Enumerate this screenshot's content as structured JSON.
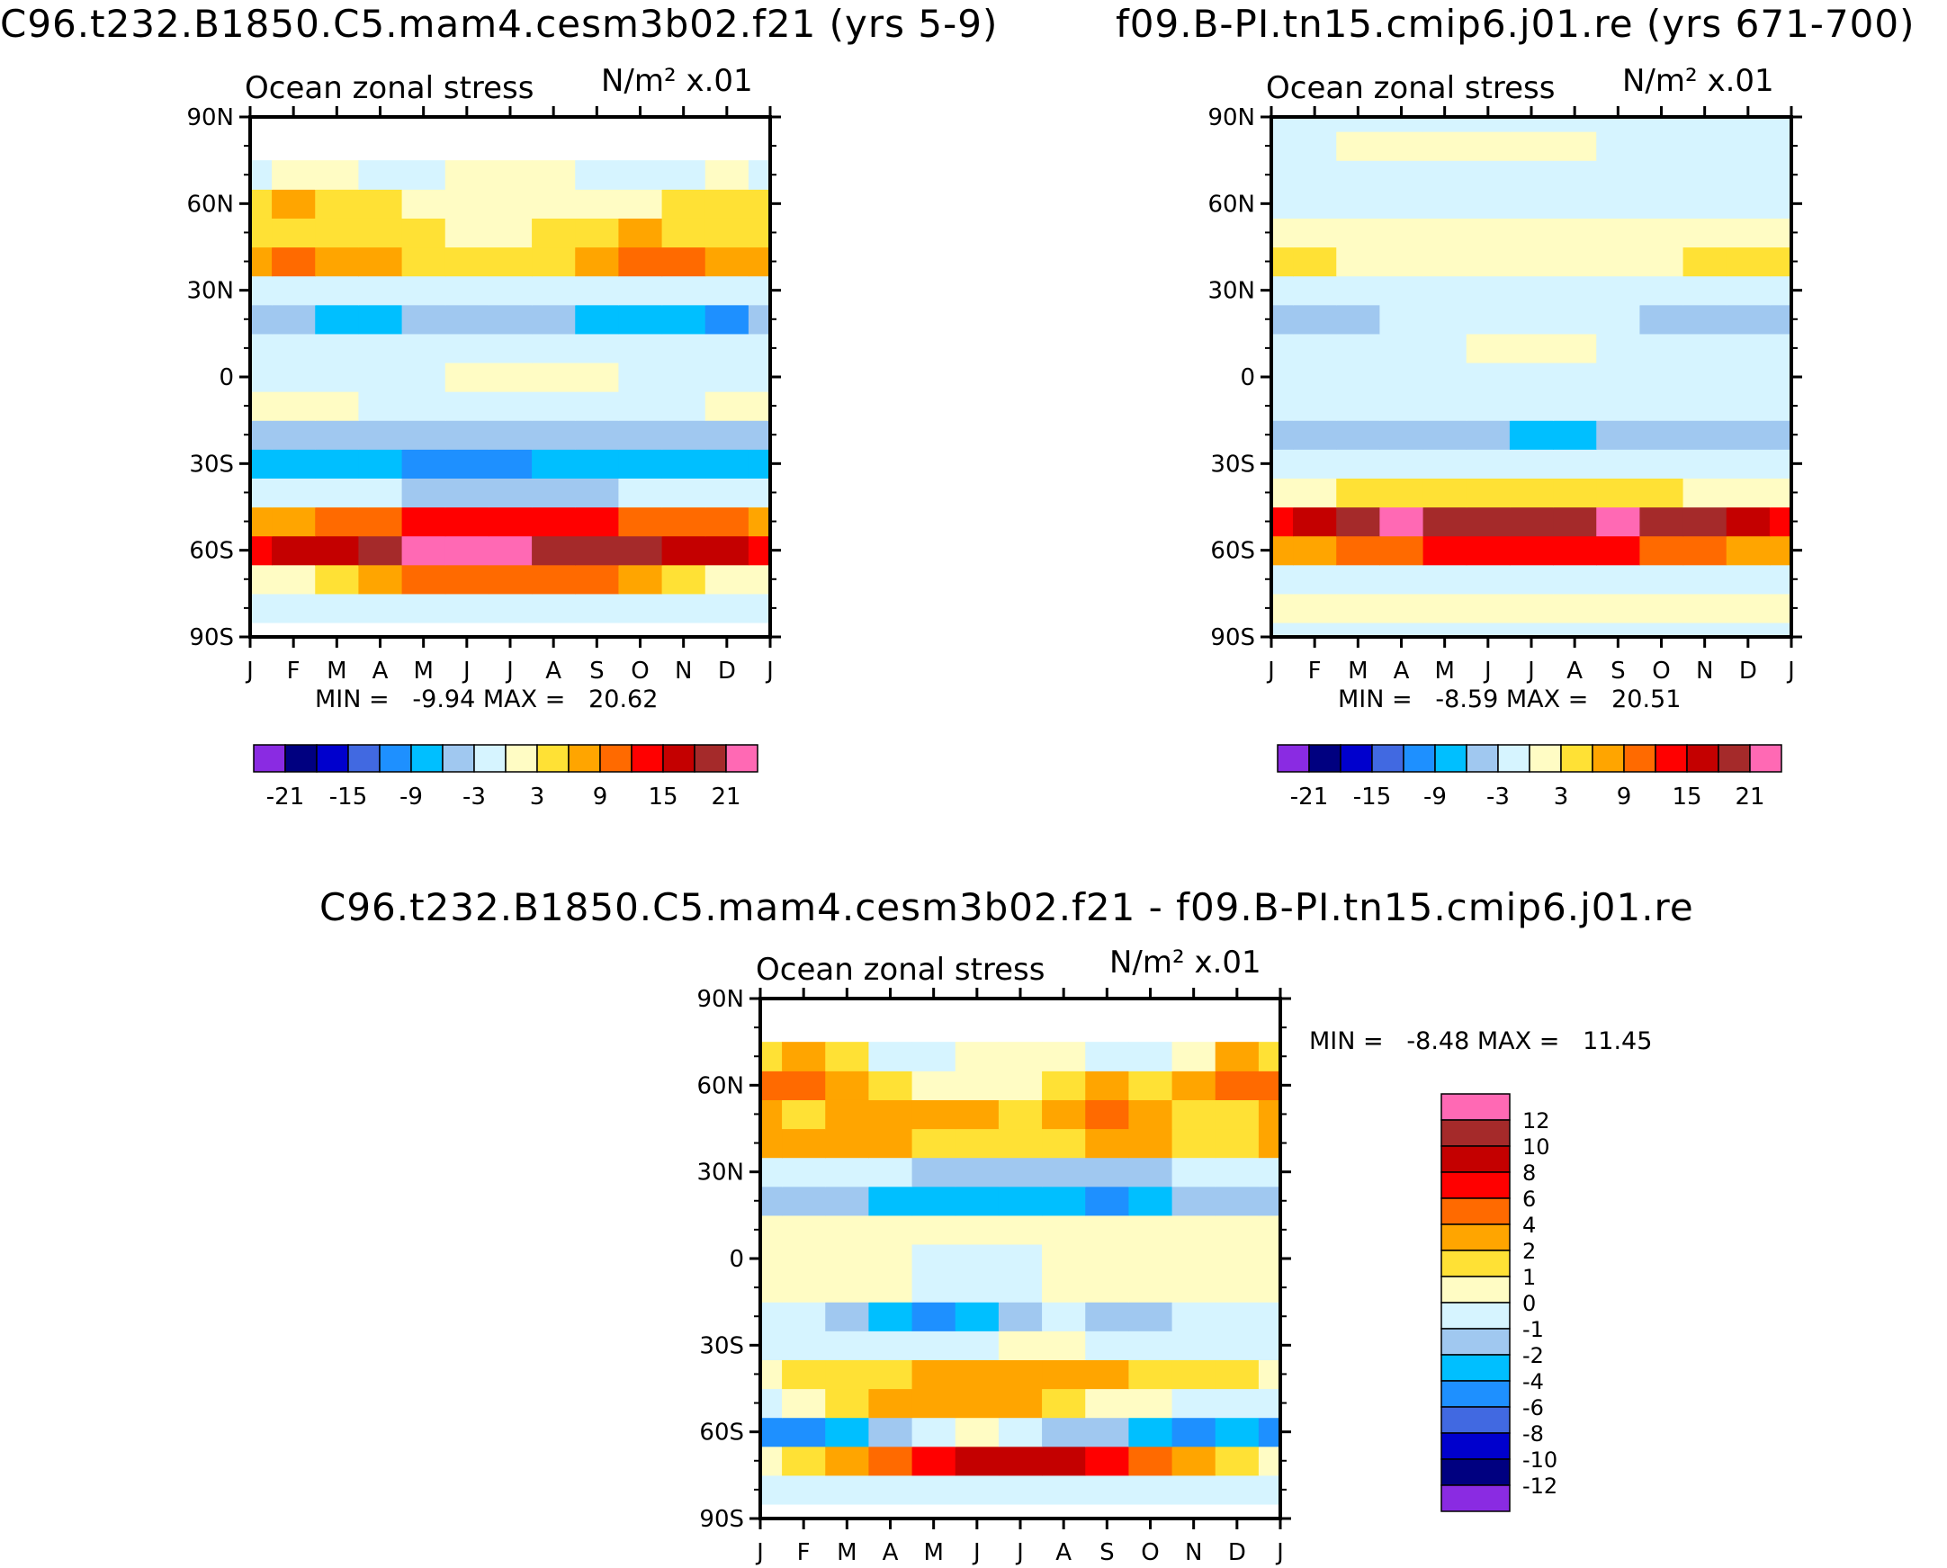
{
  "panels": [
    {
      "caption": "C96.t232.B1850.C5.mam4.cesm3b02.f21 (yrs 5-9)",
      "title": "Ocean zonal stress",
      "units": "N/m² x.01",
      "min_label": "MIN =",
      "min_value": "-9.94",
      "max_label": "MAX =",
      "max_value": "20.62"
    },
    {
      "caption": "f09.B-PI.tn15.cmip6.j01.re (yrs 671-700)",
      "title": "Ocean zonal stress",
      "units": "N/m² x.01",
      "min_label": "MIN =",
      "min_value": "-8.59",
      "max_label": "MAX =",
      "max_value": "20.51"
    },
    {
      "caption": "C96.t232.B1850.C5.mam4.cesm3b02.f21 - f09.B-PI.tn15.cmip6.j01.re",
      "title": "Ocean zonal stress",
      "units": "N/m² x.01",
      "min_label": "MIN =",
      "min_value": "-8.48",
      "max_label": "MAX =",
      "max_value": "11.45"
    }
  ],
  "chart_data": [
    {
      "type": "heatmap",
      "title": "Ocean zonal stress",
      "units": "N/m² x.01",
      "x_ticks": [
        "J",
        "F",
        "M",
        "A",
        "M",
        "J",
        "J",
        "A",
        "S",
        "O",
        "N",
        "D",
        "J"
      ],
      "y_ticks": [
        "90N",
        "60N",
        "30N",
        "0",
        "30S",
        "60S",
        "90S"
      ],
      "ylim": [
        -90,
        90
      ],
      "months": [
        "J",
        "F",
        "M",
        "A",
        "M",
        "J",
        "J",
        "A",
        "S",
        "O",
        "N",
        "D",
        "J"
      ],
      "lat": [
        -90,
        -80,
        -70,
        -60,
        -50,
        -40,
        -30,
        -20,
        -10,
        0,
        10,
        20,
        30,
        40,
        50,
        60,
        70,
        80,
        90
      ],
      "z": [
        [
          null,
          null,
          null,
          null,
          null,
          null,
          null,
          null,
          null,
          null,
          null,
          null,
          null
        ],
        [
          -0.5,
          -0.5,
          -0.5,
          -0.5,
          -0.5,
          -0.5,
          -0.5,
          -0.5,
          -0.5,
          -0.5,
          -0.5,
          -0.5,
          -0.5
        ],
        [
          1,
          2,
          4,
          7,
          9,
          10,
          10,
          10,
          9,
          8,
          5,
          2,
          1
        ],
        [
          14,
          15,
          16,
          18,
          21,
          22,
          21,
          20,
          20,
          19,
          17,
          15,
          14
        ],
        [
          8,
          8,
          9,
          10,
          12,
          13,
          13,
          12,
          12,
          11,
          10,
          9,
          8
        ],
        [
          -2,
          -2,
          -2,
          -3,
          -4,
          -5,
          -5,
          -5,
          -4,
          -3,
          -3,
          -2,
          -2
        ],
        [
          -8,
          -9,
          -9,
          -9,
          -10,
          -10,
          -10,
          -9,
          -9,
          -9,
          -8,
          -8,
          -8
        ],
        [
          -4,
          -4,
          -4,
          -5,
          -6,
          -6,
          -6,
          -6,
          -5,
          -5,
          -5,
          -4,
          -4
        ],
        [
          1,
          1,
          0,
          -1,
          -1,
          -2,
          -2,
          -2,
          -2,
          -1,
          -1,
          0,
          1
        ],
        [
          -2,
          -2,
          -2,
          -1,
          -1,
          0,
          1,
          1,
          0,
          -1,
          -1,
          -2,
          -2
        ],
        [
          -3,
          -3,
          -3,
          -3,
          -2,
          -2,
          -2,
          -2,
          -2,
          -3,
          -3,
          -3,
          -3
        ],
        [
          -6,
          -6,
          -7,
          -7,
          -6,
          -5,
          -5,
          -6,
          -7,
          -8,
          -9,
          -10,
          -6
        ],
        [
          -2,
          -2,
          -2,
          -2,
          -2,
          -2,
          -2,
          -2,
          -2,
          -3,
          -3,
          -3,
          -2
        ],
        [
          6,
          9,
          8,
          6,
          5,
          4,
          3,
          5,
          7,
          9,
          9,
          8,
          6
        ],
        [
          4,
          4,
          5,
          4,
          3,
          2,
          1,
          3,
          5,
          6,
          5,
          4,
          4
        ],
        [
          5,
          6,
          5,
          3,
          2,
          1,
          0,
          1,
          2,
          2,
          3,
          4,
          5
        ],
        [
          -1,
          0,
          0,
          -1,
          -1,
          0,
          0,
          0,
          -1,
          -1,
          -1,
          0,
          -1
        ],
        [
          null,
          null,
          null,
          null,
          null,
          null,
          null,
          null,
          null,
          null,
          null,
          null,
          null
        ],
        [
          null,
          null,
          null,
          null,
          null,
          null,
          null,
          null,
          null,
          null,
          null,
          null,
          null
        ]
      ]
    },
    {
      "type": "heatmap",
      "title": "Ocean zonal stress",
      "units": "N/m² x.01",
      "x_ticks": [
        "J",
        "F",
        "M",
        "A",
        "M",
        "J",
        "J",
        "A",
        "S",
        "O",
        "N",
        "D",
        "J"
      ],
      "y_ticks": [
        "90N",
        "60N",
        "30N",
        "0",
        "30S",
        "60S",
        "90S"
      ],
      "ylim": [
        -90,
        90
      ],
      "months": [
        "J",
        "F",
        "M",
        "A",
        "M",
        "J",
        "J",
        "A",
        "S",
        "O",
        "N",
        "D",
        "J"
      ],
      "lat": [
        -90,
        -80,
        -70,
        -60,
        -50,
        -40,
        -30,
        -20,
        -10,
        0,
        10,
        20,
        30,
        40,
        50,
        60,
        70,
        80,
        90
      ],
      "z": [
        [
          -0.5,
          -0.5,
          -0.5,
          -0.5,
          -0.5,
          -0.5,
          -0.5,
          -0.5,
          -0.5,
          -0.5,
          -0.5,
          -0.5,
          -0.5
        ],
        [
          0.5,
          0.5,
          0.5,
          0.5,
          0.5,
          0.5,
          0.5,
          0.5,
          0.5,
          0.5,
          0.5,
          0.5,
          0.5
        ],
        [
          -0.5,
          -0.5,
          -0.5,
          -0.5,
          -0.5,
          -0.5,
          -0.5,
          -0.5,
          -0.5,
          -0.5,
          -0.5,
          -0.5,
          -0.5
        ],
        [
          6,
          7,
          9,
          11,
          12,
          12,
          12,
          12,
          12,
          11,
          9,
          8,
          6
        ],
        [
          14,
          16,
          18,
          21,
          20,
          19,
          19,
          20,
          21,
          20,
          18,
          16,
          14
        ],
        [
          1,
          2,
          3,
          4,
          4,
          4,
          4,
          4,
          4,
          3,
          2,
          2,
          1
        ],
        [
          -2,
          -3,
          -3,
          -3,
          -3,
          -3,
          -3,
          -3,
          -3,
          -3,
          -2,
          -2,
          -2
        ],
        [
          -4,
          -4,
          -4,
          -4,
          -5,
          -6,
          -7,
          -7,
          -6,
          -5,
          -4,
          -4,
          -4
        ],
        [
          -2,
          -2,
          -2,
          -2,
          -2,
          -2,
          -2,
          -2,
          -2,
          -2,
          -2,
          -2,
          -2
        ],
        [
          -1,
          -1,
          -1,
          -1,
          -1,
          -1,
          -1,
          -1,
          -1,
          -1,
          -1,
          -1,
          -1
        ],
        [
          -2,
          -2,
          -1,
          -1,
          -1,
          0,
          0,
          0,
          -1,
          -1,
          -1,
          -1,
          -2
        ],
        [
          -6,
          -5,
          -4,
          -3,
          -3,
          -2,
          -2,
          -2,
          -3,
          -4,
          -5,
          -6,
          -6
        ],
        [
          -1,
          -1,
          -1,
          -1,
          -1,
          -1,
          -1,
          -1,
          -1,
          -1,
          -1,
          -1,
          -1
        ],
        [
          4,
          3,
          2,
          1,
          0,
          0,
          0,
          0,
          1,
          2,
          4,
          5,
          4
        ],
        [
          2,
          2,
          2,
          1,
          0,
          0,
          0,
          0,
          1,
          2,
          2,
          2,
          2
        ],
        [
          -0.5,
          -0.5,
          -0.5,
          -0.5,
          -0.5,
          -0.5,
          -0.5,
          -0.5,
          -0.5,
          -0.5,
          -0.5,
          -0.5,
          -0.5
        ],
        [
          -0.5,
          -0.5,
          -0.5,
          -0.5,
          -0.5,
          -0.5,
          -0.5,
          -0.5,
          -0.5,
          -0.5,
          -0.5,
          -0.5,
          -0.5
        ],
        [
          -0.5,
          -0.5,
          0.5,
          0.5,
          0.5,
          0.5,
          0.5,
          0.5,
          -0.5,
          -0.5,
          -0.5,
          -0.5,
          -0.5
        ],
        [
          -0.5,
          -0.5,
          -0.5,
          -0.5,
          -0.5,
          -0.5,
          -0.5,
          -0.5,
          -0.5,
          -0.5,
          -0.5,
          -0.5,
          -0.5
        ]
      ]
    },
    {
      "type": "heatmap",
      "title": "Ocean zonal stress",
      "units": "N/m² x.01",
      "x_ticks": [
        "J",
        "F",
        "M",
        "A",
        "M",
        "J",
        "J",
        "A",
        "S",
        "O",
        "N",
        "D",
        "J"
      ],
      "y_ticks": [
        "90N",
        "60N",
        "30N",
        "0",
        "30S",
        "60S",
        "90S"
      ],
      "ylim": [
        -90,
        90
      ],
      "months": [
        "J",
        "F",
        "M",
        "A",
        "M",
        "J",
        "J",
        "A",
        "S",
        "O",
        "N",
        "D",
        "J"
      ],
      "lat": [
        -90,
        -80,
        -70,
        -60,
        -50,
        -40,
        -30,
        -20,
        -10,
        0,
        10,
        20,
        30,
        40,
        50,
        60,
        70,
        80,
        90
      ],
      "z": [
        [
          null,
          null,
          null,
          null,
          null,
          null,
          null,
          null,
          null,
          null,
          null,
          null,
          null
        ],
        [
          -0.5,
          -0.5,
          -0.5,
          -0.5,
          -0.5,
          -0.5,
          -0.5,
          -0.5,
          -0.5,
          -0.5,
          -0.5,
          -0.5,
          -0.5
        ],
        [
          0,
          1,
          2,
          4,
          6,
          9,
          9,
          8,
          6,
          4,
          2,
          1,
          0
        ],
        [
          -5,
          -6,
          -3,
          -2,
          -1,
          0,
          -1,
          -2,
          -2,
          -3,
          -5,
          -4,
          -5
        ],
        [
          -1,
          0,
          1,
          2,
          3,
          3,
          2,
          1,
          0,
          0,
          -1,
          -1,
          -1
        ],
        [
          0.5,
          1,
          1,
          1,
          2,
          3,
          3,
          2,
          2,
          1,
          1,
          1,
          0.5
        ],
        [
          -0.5,
          -1,
          -1,
          -1,
          -1,
          -0.5,
          0,
          0,
          -0.5,
          -1,
          -1,
          -1,
          -0.5
        ],
        [
          -1,
          -1,
          -2,
          -3,
          -5,
          -4,
          -2,
          -1,
          -2,
          -2,
          -1,
          -1,
          -1
        ],
        [
          0,
          0.5,
          0.5,
          0,
          -0.5,
          -1,
          -0.5,
          0,
          0,
          0,
          0,
          0.5,
          0
        ],
        [
          0.5,
          0.5,
          0.5,
          0,
          -1,
          -1,
          -0.5,
          0,
          0.5,
          0.5,
          0,
          0.5,
          0.5
        ],
        [
          0.5,
          0,
          0,
          0,
          0,
          0.5,
          0.5,
          0,
          0,
          0,
          0,
          0,
          0.5
        ],
        [
          -2,
          -2,
          -2,
          -3,
          -4,
          -3,
          -3,
          -4,
          -5,
          -4,
          -2,
          -2,
          -2
        ],
        [
          -1,
          -1,
          -1,
          -1,
          -2,
          -2,
          -2,
          -2,
          -2,
          -2,
          -1,
          -1,
          -1
        ],
        [
          2,
          3,
          3,
          2,
          1,
          1,
          1,
          1,
          2,
          2,
          1,
          1,
          2
        ],
        [
          2,
          1,
          2,
          3,
          3,
          2,
          1,
          3,
          4,
          3,
          1,
          1,
          2
        ],
        [
          4,
          5,
          3,
          1,
          0,
          0,
          0,
          1,
          2,
          1,
          3,
          4,
          4
        ],
        [
          1,
          3,
          1,
          -1,
          -1,
          0,
          0,
          0,
          -1,
          -1,
          0,
          2,
          1
        ],
        [
          null,
          null,
          null,
          null,
          null,
          null,
          null,
          null,
          null,
          null,
          null,
          null,
          null
        ],
        [
          null,
          null,
          null,
          null,
          null,
          null,
          null,
          null,
          null,
          null,
          null,
          null,
          null
        ]
      ]
    }
  ],
  "colorbars": [
    {
      "orientation": "horizontal",
      "colors": [
        "#8a2be2",
        "#000080",
        "#0000cd",
        "#4169e1",
        "#1e90ff",
        "#00bfff",
        "#a0c8f0",
        "#d6f4ff",
        "#fffcc4",
        "#ffe135",
        "#ffa500",
        "#ff6a00",
        "#ff0000",
        "#c40000",
        "#a52a2a",
        "#ff69b4"
      ],
      "levels": [
        -21,
        -18,
        -15,
        -12,
        -9,
        -6,
        -3,
        0,
        3,
        6,
        9,
        12,
        15,
        18,
        21
      ],
      "labels": [
        "-21",
        "-15",
        "-9",
        "-3",
        "3",
        "9",
        "15",
        "21"
      ]
    },
    {
      "orientation": "horizontal",
      "colors": [
        "#8a2be2",
        "#000080",
        "#0000cd",
        "#4169e1",
        "#1e90ff",
        "#00bfff",
        "#a0c8f0",
        "#d6f4ff",
        "#fffcc4",
        "#ffe135",
        "#ffa500",
        "#ff6a00",
        "#ff0000",
        "#c40000",
        "#a52a2a",
        "#ff69b4"
      ],
      "levels": [
        -21,
        -18,
        -15,
        -12,
        -9,
        -6,
        -3,
        0,
        3,
        6,
        9,
        12,
        15,
        18,
        21
      ],
      "labels": [
        "-21",
        "-15",
        "-9",
        "-3",
        "3",
        "9",
        "15",
        "21"
      ]
    },
    {
      "orientation": "vertical",
      "colors": [
        "#8a2be2",
        "#000080",
        "#0000cd",
        "#4169e1",
        "#1e90ff",
        "#00bfff",
        "#a0c8f0",
        "#d6f4ff",
        "#fffcc4",
        "#ffe135",
        "#ffa500",
        "#ff6a00",
        "#ff0000",
        "#c40000",
        "#a52a2a",
        "#ff69b4"
      ],
      "levels": [
        -12,
        -10,
        -8,
        -6,
        -4,
        -2,
        -1,
        0,
        1,
        2,
        4,
        6,
        8,
        10,
        12
      ],
      "labels": [
        "-12",
        "-10",
        "-8",
        "-6",
        "-4",
        "-2",
        "-1",
        "0",
        "1",
        "2",
        "4",
        "6",
        "8",
        "10",
        "12"
      ]
    }
  ]
}
